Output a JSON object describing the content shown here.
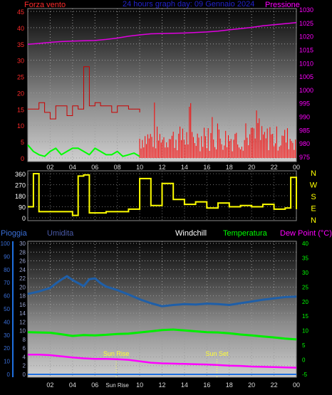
{
  "header": {
    "wind_axis_label": "Forza vento",
    "title": "24 hours graph day: 09 Gennaio 2024",
    "pressure_axis_label": "Pressione"
  },
  "footer_labels": {
    "rain": "Pioggia",
    "humidity": "Umidita",
    "windchill": "Windchill",
    "temperature": "Temperatura",
    "dew_point": "Dew Point (°C)",
    "sun_rise": "Sun Rise",
    "sun_set": "Sun Set"
  },
  "colors": {
    "wind_speed": "#ff0000",
    "wind_gust_box": "#cc0000",
    "wind_low": "#00ff00",
    "pressure": "#e000e0",
    "direction": "#ffff00",
    "humidity": "#1f5fa8",
    "temperature": "#00ee00",
    "dew_point": "#ff00ff",
    "rain": "#1f6fdf",
    "left_axis": "#ff2a2a",
    "pressure_axis": "#ff00ff",
    "title": "#2222cc",
    "rain_axis": "#3a6fd8",
    "humidity_axis": "#9aa4d0",
    "temp_axis": "#00ff00"
  },
  "chart_data": [
    {
      "type": "line",
      "title": "24 hours graph day: 09 Gennaio 2024",
      "x_ticks": [
        "02",
        "04",
        "06",
        "08",
        "10",
        "12",
        "14",
        "16",
        "18",
        "20",
        "22",
        "00"
      ],
      "ylabel_left": "Forza vento",
      "ylim_left": [
        0,
        45
      ],
      "yticks_left": [
        0,
        5,
        10,
        15,
        20,
        25,
        30,
        35,
        40,
        45
      ],
      "ylabel_right": "Pressione",
      "ylim_right": [
        975,
        1030
      ],
      "yticks_right": [
        975,
        980,
        985,
        990,
        995,
        1000,
        1005,
        1010,
        1015,
        1020,
        1025,
        1030
      ],
      "series": [
        {
          "name": "Pressione",
          "axis": "right",
          "x": [
            0,
            1,
            2,
            3,
            4,
            5,
            6,
            7,
            8,
            9,
            10,
            11,
            12,
            13,
            14,
            15,
            16,
            17,
            18,
            19,
            20,
            21,
            22,
            23,
            24
          ],
          "values": [
            1017.2,
            1017.5,
            1017.9,
            1018.2,
            1018.4,
            1018.5,
            1018.6,
            1019.0,
            1019.5,
            1020.2,
            1020.7,
            1021.1,
            1021.2,
            1021.3,
            1021.4,
            1021.6,
            1021.8,
            1022.1,
            1022.6,
            1023.0,
            1023.5,
            1024.1,
            1024.5,
            1024.9,
            1025.3
          ]
        },
        {
          "axis": "left",
          "x": [
            0,
            0.5,
            1,
            1.5,
            2,
            2.5,
            3,
            3.5,
            4,
            4.5,
            5,
            5.5,
            6,
            6.5,
            7,
            7.5,
            8,
            8.5,
            9,
            9.5,
            10
          ],
          "values": [
            15,
            15,
            17,
            14,
            12,
            16,
            16,
            13,
            16,
            15,
            28,
            16,
            17,
            16,
            16,
            14,
            16,
            16,
            15,
            15,
            14
          ]
        },
        {
          "axis": "left",
          "x": [
            0,
            0.5,
            1,
            1.5,
            2,
            2.5,
            3,
            3.5,
            4,
            4.5,
            5,
            5.5,
            6,
            6.5,
            7,
            7.5,
            8,
            8.5,
            9,
            9.5,
            10
          ],
          "values": [
            4,
            2,
            1,
            0.5,
            2,
            3,
            1,
            2,
            3,
            3,
            2,
            1,
            3,
            2,
            1,
            1,
            2,
            0.5,
            1,
            1.5,
            0.5
          ]
        }
      ]
    },
    {
      "type": "line",
      "x_ticks": [
        "02",
        "04",
        "06",
        "08",
        "10",
        "12",
        "14",
        "16",
        "18",
        "20",
        "22",
        "00"
      ],
      "ylim_left": [
        0,
        360
      ],
      "yticks_left": [
        0,
        90,
        180,
        270,
        360
      ],
      "compass_labels": [
        "N",
        "W",
        "S",
        "E",
        "N"
      ],
      "series": [
        {
          "axis": "left",
          "x": [
            0,
            0.5,
            1,
            2,
            3,
            4,
            4.5,
            5,
            5.5,
            6,
            7,
            8,
            9,
            10,
            11,
            12,
            13,
            14,
            15,
            16,
            17,
            18,
            19,
            20,
            21,
            22,
            23,
            23.5,
            24
          ],
          "values": [
            90,
            360,
            50,
            50,
            50,
            20,
            340,
            350,
            40,
            40,
            50,
            50,
            70,
            320,
            100,
            280,
            150,
            110,
            130,
            80,
            120,
            90,
            100,
            90,
            110,
            70,
            80,
            330,
            70
          ]
        }
      ]
    },
    {
      "type": "line",
      "x_ticks": [
        "02",
        "04",
        "06",
        "Sun Rise",
        "10",
        "12",
        "14",
        "16",
        "18",
        "20",
        "22",
        "00"
      ],
      "ylabel_rain": "Pioggia",
      "ylim_rain": [
        0,
        100
      ],
      "yticks_rain": [
        0,
        10,
        20,
        30,
        40,
        50,
        60,
        70,
        80,
        90,
        100
      ],
      "ylabel_humidity": "Umidita",
      "ylim_humidity": [
        0,
        30
      ],
      "yticks_humidity": [
        0,
        2,
        4,
        6,
        8,
        10,
        12,
        14,
        16,
        18,
        20,
        22,
        24,
        26,
        28,
        30
      ],
      "ylabel_right": "°C",
      "ylim_right": [
        -5,
        40
      ],
      "yticks_right": [
        -5,
        0,
        5,
        10,
        15,
        20,
        25,
        30,
        35,
        40
      ],
      "annotations": [
        {
          "label": "Sun Rise",
          "x": 7.9
        },
        {
          "label": "Sun Set",
          "x": 16.9
        }
      ],
      "series": [
        {
          "name": "Umidita",
          "axis": "humidity",
          "x": [
            0,
            1,
            2,
            2.5,
            3,
            3.5,
            4,
            5,
            5.5,
            6,
            6.5,
            7,
            8,
            9,
            10,
            11,
            12,
            13,
            14,
            15,
            16,
            17,
            18,
            19,
            20,
            21,
            22,
            23,
            24
          ],
          "values": [
            18.4,
            19.0,
            19.8,
            20.8,
            21.7,
            22.5,
            21.6,
            20.2,
            21.8,
            22.0,
            20.9,
            20.1,
            19.3,
            18.3,
            17.2,
            16.3,
            15.6,
            15.9,
            16.1,
            16.0,
            16.2,
            16.1,
            15.9,
            16.3,
            16.7,
            17.1,
            17.4,
            17.7,
            17.8
          ]
        },
        {
          "name": "Temperatura",
          "axis": "right",
          "x": [
            0,
            1,
            2,
            3,
            4,
            5,
            6,
            7,
            8,
            9,
            10,
            11,
            12,
            13,
            14,
            15,
            16,
            17,
            18,
            19,
            20,
            21,
            22,
            23,
            24
          ],
          "values": [
            9.5,
            9.4,
            9.3,
            8.8,
            8.2,
            8.5,
            8.4,
            8.6,
            8.9,
            9.0,
            9.4,
            9.8,
            10.2,
            10.4,
            10.1,
            9.8,
            9.5,
            9.4,
            9.1,
            8.7,
            8.4,
            8.0,
            7.7,
            7.3,
            7.0
          ]
        },
        {
          "name": "Dew Point (°C)",
          "axis": "right",
          "x": [
            0,
            1,
            2,
            3,
            4,
            5,
            6,
            7,
            8,
            9,
            10,
            11,
            12,
            13,
            14,
            15,
            16,
            17,
            18,
            19,
            20,
            21,
            22,
            23,
            24
          ],
          "values": [
            1.8,
            1.8,
            1.6,
            1.2,
            0.8,
            0.5,
            0.3,
            0.3,
            0.2,
            0.0,
            -0.5,
            -1.0,
            -1.2,
            -1.3,
            -1.4,
            -1.5,
            -1.6,
            -1.8,
            -2.0,
            -2.1,
            -2.3,
            -2.4,
            -2.5,
            -2.6,
            -2.7
          ]
        },
        {
          "name": "Pioggia",
          "axis": "rain",
          "x": [
            0,
            24
          ],
          "values": [
            0,
            0
          ]
        }
      ]
    }
  ]
}
